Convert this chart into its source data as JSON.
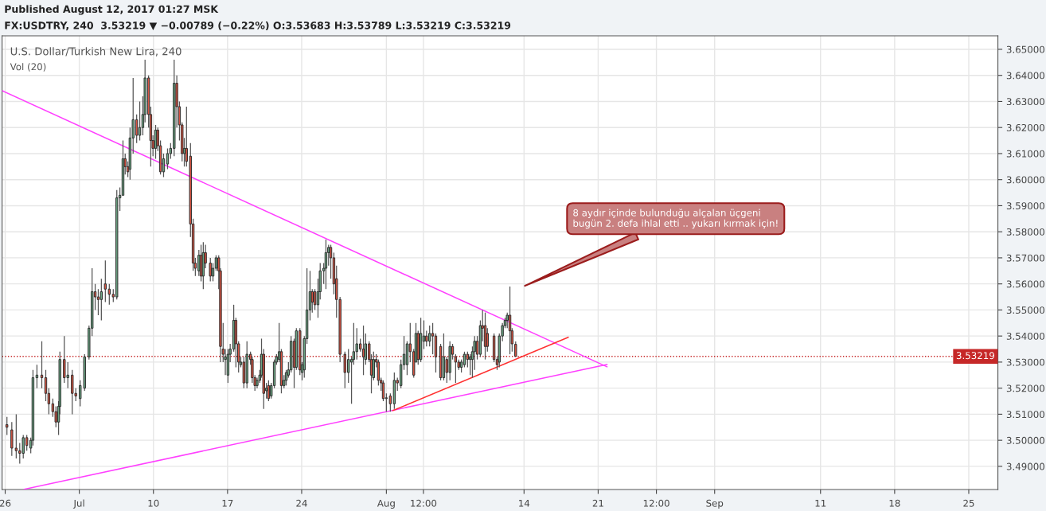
{
  "chart_data": {
    "type": "candlestick",
    "title": "Published August 12, 2017 01:27 MSK",
    "subtitle": "FX:USDTRY, 240  3.53219 ▼ −0.00789 (−0.22%) O:3.53683 H:3.53789 L:3.53219 C:3.53219",
    "annotations": [
      "U.S. Dollar/Turkish New Lira, 240",
      "Vol (20)",
      "8 aydır içinde bulunduğu alçalan üçgeni\nbugün 2. defa ihlal etti .. yukarı kırmak için!"
    ],
    "x": [
      "2017-06-26T04:00",
      "2017-06-26T15:00",
      "2017-06-27T01:00",
      "2017-06-27T09:00",
      "2017-06-27T17:00",
      "2017-06-28T01:00",
      "2017-06-28T10:00",
      "2017-06-28T15:00",
      "2017-06-29T00:00",
      "2017-06-29T11:00",
      "2017-06-29T20:00",
      "2017-06-30T03:00",
      "2017-06-30T12:00",
      "2017-06-30T19:00",
      "2017-07-01T01:00",
      "2017-07-01T04:00",
      "2017-07-01T14:00",
      "2017-07-01T22:00",
      "2017-07-02T08:00",
      "2017-07-02T16:00",
      "2017-07-03T02:00",
      "2017-07-03T12:00",
      "2017-07-03T22:00",
      "2017-07-04T05:00",
      "2017-07-04T12:00",
      "2017-07-04T19:00",
      "2017-07-05T02:00",
      "2017-07-05T11:00",
      "2017-07-05T20:00",
      "2017-07-06T05:00",
      "2017-07-06T13:00",
      "2017-07-06T20:00",
      "2017-07-07T03:00",
      "2017-07-07T08:00",
      "2017-07-07T14:00",
      "2017-07-07T19:00",
      "2017-07-08T02:00",
      "2017-07-08T10:00",
      "2017-07-08T17:00",
      "2017-07-09T00:00",
      "2017-07-09T05:00",
      "2017-07-09T13:00",
      "2017-07-09T18:00",
      "2017-07-09T23:00",
      "2017-07-10T05:00",
      "2017-07-10T10:00",
      "2017-07-10T16:00",
      "2017-07-10T23:00",
      "2017-07-11T08:00",
      "2017-07-11T15:00",
      "2017-07-11T23:00",
      "2017-07-12T05:00",
      "2017-07-12T11:00",
      "2017-07-12T17:00",
      "2017-07-12T22:00",
      "2017-07-13T03:00",
      "2017-07-13T12:00",
      "2017-07-13T18:00",
      "2017-07-13T23:00",
      "2017-07-14T07:00",
      "2017-07-14T12:00",
      "2017-07-14T17:00",
      "2017-07-14T22:00",
      "2017-07-15T09:00",
      "2017-07-15T15:00",
      "2017-07-15T22:00",
      "2017-07-16T04:00",
      "2017-07-16T08:00",
      "2017-07-16T14:00",
      "2017-07-16T19:00",
      "2017-07-17T01:00",
      "2017-07-17T06:00",
      "2017-07-17T14:00",
      "2017-07-17T19:00",
      "2017-07-18T01:00",
      "2017-07-18T06:00",
      "2017-07-18T13:00",
      "2017-07-18T20:00",
      "2017-07-19T04:00",
      "2017-07-19T08:00",
      "2017-07-19T14:00",
      "2017-07-19T19:00",
      "2017-07-20T01:00",
      "2017-07-20T05:00",
      "2017-07-20T10:00",
      "2017-07-20T16:00",
      "2017-07-20T21:00",
      "2017-07-21T03:00",
      "2017-07-21T10:00",
      "2017-07-21T15:00",
      "2017-07-21T21:00",
      "2017-07-22T02:00",
      "2017-07-22T08:00",
      "2017-07-22T13:00",
      "2017-07-22T18:00",
      "2017-07-23T00:00",
      "2017-07-23T07:00",
      "2017-07-23T12:00",
      "2017-07-23T20:00",
      "2017-07-24T01:00",
      "2017-07-24T06:00",
      "2017-07-24T12:00",
      "2017-07-24T19:00",
      "2017-07-25T00:00",
      "2017-07-25T06:00",
      "2017-07-25T13:00",
      "2017-07-25T18:00",
      "2017-07-26T02:00",
      "2017-07-26T07:00",
      "2017-07-26T13:00",
      "2017-07-26T18:00",
      "2017-07-27T01:00",
      "2017-07-27T07:00",
      "2017-07-27T15:00",
      "2017-07-28T02:00",
      "2017-07-28T10:00",
      "2017-07-28T17:00",
      "2017-07-28T22:00",
      "2017-07-29T05:00",
      "2017-07-29T13:00",
      "2017-07-29T20:00",
      "2017-07-30T01:00",
      "2017-07-30T09:00",
      "2017-07-30T14:00",
      "2017-07-30T19:00",
      "2017-07-31T01:00",
      "2017-07-31T06:00",
      "2017-07-31T12:00",
      "2017-07-31T17:00",
      "2017-08-01T00:00",
      "2017-08-01T09:00",
      "2017-08-01T18:00",
      "2017-08-02T01:00",
      "2017-08-02T09:00",
      "2017-08-02T16:00",
      "2017-08-02T23:00",
      "2017-08-03T06:00",
      "2017-08-03T14:00",
      "2017-08-03T19:00",
      "2017-08-04T00:00",
      "2017-08-04T06:00",
      "2017-08-04T13:00",
      "2017-08-04T19:00",
      "2017-08-05T02:00",
      "2017-08-05T09:00",
      "2017-08-05T16:00",
      "2017-08-06T03:00",
      "2017-08-06T10:00",
      "2017-08-06T17:00",
      "2017-08-07T00:00",
      "2017-08-07T06:00",
      "2017-08-07T13:00",
      "2017-08-07T20:00",
      "2017-08-08T02:00",
      "2017-08-08T09:00",
      "2017-08-08T16:00",
      "2017-08-08T22:00",
      "2017-08-09T03:00",
      "2017-08-09T08:00",
      "2017-08-09T14:00",
      "2017-08-09T21:00",
      "2017-08-10T02:00",
      "2017-08-10T08:00",
      "2017-08-10T13:00",
      "2017-08-11T04:00",
      "2017-08-11T11:00",
      "2017-08-11T16:00",
      "2017-08-11T23:00",
      "2017-08-12T05:00",
      "2017-08-12T10:00",
      "2017-08-12T16:00",
      "2017-08-12T21:00",
      "2017-08-13T05:00"
    ],
    "ohlc": [
      [
        3.506,
        3.509,
        3.502,
        3.505
      ],
      [
        3.504,
        3.507,
        3.494,
        3.497
      ],
      [
        3.497,
        3.51,
        3.493,
        3.496
      ],
      [
        3.496,
        3.499,
        3.491,
        3.495
      ],
      [
        3.495,
        3.502,
        3.493,
        3.501
      ],
      [
        3.501,
        3.502,
        3.496,
        3.498
      ],
      [
        3.497,
        3.501,
        3.495,
        3.5
      ],
      [
        3.5,
        3.527,
        3.498,
        3.524
      ],
      [
        3.524,
        3.529,
        3.52,
        3.525
      ],
      [
        3.525,
        3.538,
        3.52,
        3.524
      ],
      [
        3.524,
        3.527,
        3.515,
        3.518
      ],
      [
        3.518,
        3.52,
        3.51,
        3.514
      ],
      [
        3.514,
        3.516,
        3.509,
        3.511
      ],
      [
        3.511,
        3.513,
        3.505,
        3.507
      ],
      [
        3.507,
        3.515,
        3.502,
        3.513
      ],
      [
        3.513,
        3.534,
        3.51,
        3.531
      ],
      [
        3.531,
        3.54,
        3.522,
        3.524
      ],
      [
        3.524,
        3.53,
        3.52,
        3.525
      ],
      [
        3.525,
        3.527,
        3.51,
        3.518
      ],
      [
        3.518,
        3.52,
        3.515,
        3.517
      ],
      [
        3.516,
        3.523,
        3.513,
        3.521
      ],
      [
        3.52,
        3.533,
        3.519,
        3.532
      ],
      [
        3.532,
        3.544,
        3.531,
        3.543
      ],
      [
        3.543,
        3.566,
        3.54,
        3.557
      ],
      [
        3.557,
        3.56,
        3.55,
        3.555
      ],
      [
        3.555,
        3.558,
        3.548,
        3.554
      ],
      [
        3.554,
        3.562,
        3.546,
        3.557
      ],
      [
        3.56,
        3.569,
        3.553,
        3.558
      ],
      [
        3.558,
        3.56,
        3.552,
        3.556
      ],
      [
        3.556,
        3.558,
        3.553,
        3.555
      ],
      [
        3.555,
        3.596,
        3.554,
        3.593
      ],
      [
        3.593,
        3.597,
        3.588,
        3.594
      ],
      [
        3.594,
        3.615,
        3.594,
        3.608
      ],
      [
        3.608,
        3.61,
        3.602,
        3.605
      ],
      [
        3.605,
        3.607,
        3.601,
        3.603
      ],
      [
        3.604,
        3.62,
        3.6,
        3.616
      ],
      [
        3.616,
        3.639,
        3.61,
        3.623
      ],
      [
        3.623,
        3.625,
        3.614,
        3.617
      ],
      [
        3.617,
        3.63,
        3.615,
        3.62
      ],
      [
        3.62,
        3.632,
        3.617,
        3.625
      ],
      [
        3.625,
        3.646,
        3.622,
        3.639
      ],
      [
        3.639,
        3.64,
        3.62,
        3.625
      ],
      [
        3.625,
        3.628,
        3.605,
        3.615
      ],
      [
        3.615,
        3.617,
        3.609,
        3.612
      ],
      [
        3.612,
        3.621,
        3.608,
        3.619
      ],
      [
        3.619,
        3.62,
        3.611,
        3.613
      ],
      [
        3.613,
        3.615,
        3.602,
        3.603
      ],
      [
        3.603,
        3.61,
        3.601,
        3.608
      ],
      [
        3.606,
        3.612,
        3.604,
        3.61
      ],
      [
        3.61,
        3.614,
        3.608,
        3.612
      ],
      [
        3.612,
        3.646,
        3.609,
        3.637
      ],
      [
        3.637,
        3.64,
        3.62,
        3.628
      ],
      [
        3.628,
        3.63,
        3.615,
        3.621
      ],
      [
        3.621,
        3.622,
        3.607,
        3.61
      ],
      [
        3.61,
        3.616,
        3.605,
        3.612
      ],
      [
        3.612,
        3.628,
        3.605,
        3.607
      ],
      [
        3.609,
        3.614,
        3.578,
        3.583
      ],
      [
        3.583,
        3.585,
        3.565,
        3.568
      ],
      [
        3.568,
        3.57,
        3.563,
        3.566
      ],
      [
        3.565,
        3.573,
        3.563,
        3.571
      ],
      [
        3.571,
        3.575,
        3.561,
        3.563
      ],
      [
        3.563,
        3.576,
        3.558,
        3.572
      ],
      [
        3.572,
        3.575,
        3.566,
        3.568
      ],
      [
        3.568,
        3.57,
        3.561,
        3.563
      ],
      [
        3.563,
        3.568,
        3.561,
        3.566
      ],
      [
        3.566,
        3.571,
        3.565,
        3.57
      ],
      [
        3.57,
        3.571,
        3.558,
        3.565
      ],
      [
        3.565,
        3.566,
        3.53,
        3.536
      ],
      [
        3.535,
        3.545,
        3.53,
        3.533
      ],
      [
        3.531,
        3.535,
        3.525,
        3.532
      ],
      [
        3.525,
        3.535,
        3.522,
        3.533
      ],
      [
        3.533,
        3.537,
        3.53,
        3.535
      ],
      [
        3.535,
        3.552,
        3.534,
        3.546
      ],
      [
        3.546,
        3.547,
        3.528,
        3.537
      ],
      [
        3.537,
        3.538,
        3.526,
        3.53
      ],
      [
        3.529,
        3.532,
        3.528,
        3.53
      ],
      [
        3.53,
        3.532,
        3.52,
        3.522
      ],
      [
        3.522,
        3.538,
        3.52,
        3.533
      ],
      [
        3.533,
        3.534,
        3.529,
        3.531
      ],
      [
        3.531,
        3.532,
        3.522,
        3.524
      ],
      [
        3.524,
        3.525,
        3.519,
        3.521
      ],
      [
        3.521,
        3.524,
        3.52,
        3.523
      ],
      [
        3.523,
        3.527,
        3.522,
        3.525
      ],
      [
        3.525,
        3.539,
        3.524,
        3.533
      ],
      [
        3.533,
        3.535,
        3.512,
        3.518
      ],
      [
        3.519,
        3.522,
        3.516,
        3.52
      ],
      [
        3.521,
        3.523,
        3.515,
        3.516
      ],
      [
        3.517,
        3.522,
        3.516,
        3.521
      ],
      [
        3.521,
        3.531,
        3.52,
        3.53
      ],
      [
        3.53,
        3.533,
        3.529,
        3.532
      ],
      [
        3.531,
        3.545,
        3.53,
        3.534
      ],
      [
        3.534,
        3.535,
        3.518,
        3.521
      ],
      [
        3.521,
        3.525,
        3.52,
        3.523
      ],
      [
        3.523,
        3.527,
        3.521,
        3.526
      ],
      [
        3.525,
        3.53,
        3.524,
        3.527
      ],
      [
        3.527,
        3.54,
        3.526,
        3.538
      ],
      [
        3.538,
        3.539,
        3.52,
        3.528
      ],
      [
        3.528,
        3.543,
        3.527,
        3.542
      ],
      [
        3.542,
        3.543,
        3.525,
        3.527
      ],
      [
        3.526,
        3.53,
        3.523,
        3.529
      ],
      [
        3.527,
        3.54,
        3.524,
        3.539
      ],
      [
        3.539,
        3.566,
        3.537,
        3.55
      ],
      [
        3.55,
        3.565,
        3.546,
        3.557
      ],
      [
        3.557,
        3.558,
        3.549,
        3.553
      ],
      [
        3.557,
        3.558,
        3.55,
        3.552
      ],
      [
        3.552,
        3.562,
        3.547,
        3.557
      ],
      [
        3.557,
        3.568,
        3.554,
        3.565
      ],
      [
        3.565,
        3.568,
        3.56,
        3.566
      ],
      [
        3.566,
        3.577,
        3.558,
        3.572
      ],
      [
        3.572,
        3.575,
        3.567,
        3.574
      ],
      [
        3.574,
        3.575,
        3.562,
        3.57
      ],
      [
        3.57,
        3.572,
        3.556,
        3.56
      ],
      [
        3.562,
        3.567,
        3.547,
        3.554
      ],
      [
        3.554,
        3.555,
        3.53,
        3.533
      ],
      [
        3.533,
        3.534,
        3.52,
        3.526
      ],
      [
        3.526,
        3.535,
        3.522,
        3.531
      ],
      [
        3.53,
        3.532,
        3.514,
        3.531
      ],
      [
        3.531,
        3.545,
        3.529,
        3.534
      ],
      [
        3.534,
        3.543,
        3.531,
        3.537
      ],
      [
        3.537,
        3.539,
        3.534,
        3.535
      ],
      [
        3.535,
        3.544,
        3.525,
        3.532
      ],
      [
        3.531,
        3.541,
        3.529,
        3.537
      ],
      [
        3.537,
        3.538,
        3.53,
        3.531
      ],
      [
        3.531,
        3.533,
        3.518,
        3.525
      ],
      [
        3.524,
        3.534,
        3.523,
        3.531
      ],
      [
        3.531,
        3.533,
        3.528,
        3.53
      ],
      [
        3.53,
        3.531,
        3.521,
        3.523
      ],
      [
        3.523,
        3.524,
        3.519,
        3.522
      ],
      [
        3.522,
        3.523,
        3.515,
        3.516
      ],
      [
        3.516,
        3.518,
        3.511,
        3.516
      ],
      [
        3.517,
        3.518,
        3.511,
        3.514
      ],
      [
        3.514,
        3.526,
        3.512,
        3.523
      ],
      [
        3.523,
        3.524,
        3.519,
        3.522
      ],
      [
        3.521,
        3.531,
        3.52,
        3.529
      ],
      [
        3.529,
        3.54,
        3.527,
        3.533
      ],
      [
        3.529,
        3.538,
        3.525,
        3.537
      ],
      [
        3.537,
        3.545,
        3.53,
        3.534
      ],
      [
        3.534,
        3.535,
        3.524,
        3.525
      ],
      [
        3.53,
        3.545,
        3.53,
        3.541
      ],
      [
        3.541,
        3.542,
        3.529,
        3.531
      ],
      [
        3.531,
        3.547,
        3.53,
        3.541
      ],
      [
        3.538,
        3.546,
        3.535,
        3.54
      ],
      [
        3.54,
        3.542,
        3.536,
        3.538
      ],
      [
        3.538,
        3.544,
        3.536,
        3.541
      ],
      [
        3.541,
        3.545,
        3.533,
        3.54
      ],
      [
        3.54,
        3.541,
        3.526,
        3.532
      ],
      [
        3.536,
        3.537,
        3.523,
        3.524
      ],
      [
        3.524,
        3.541,
        3.523,
        3.532
      ],
      [
        3.531,
        3.532,
        3.522,
        3.526
      ],
      [
        3.526,
        3.538,
        3.523,
        3.536
      ],
      [
        3.536,
        3.537,
        3.531,
        3.533
      ],
      [
        3.532,
        3.533,
        3.522,
        3.53
      ],
      [
        3.53,
        3.531,
        3.527,
        3.528
      ],
      [
        3.528,
        3.531,
        3.526,
        3.53
      ],
      [
        3.529,
        3.534,
        3.528,
        3.533
      ],
      [
        3.533,
        3.534,
        3.528,
        3.531
      ],
      [
        3.531,
        3.533,
        3.525,
        3.532
      ],
      [
        3.531,
        3.536,
        3.524,
        3.534
      ],
      [
        3.534,
        3.54,
        3.527,
        3.538
      ],
      [
        3.538,
        3.54,
        3.531,
        3.533
      ],
      [
        3.533,
        3.546,
        3.532,
        3.544
      ],
      [
        3.544,
        3.55,
        3.538,
        3.543
      ],
      [
        3.544,
        3.549,
        3.531,
        3.536
      ],
      [
        3.541,
        3.543,
        3.534,
        3.536
      ],
      [
        3.54,
        3.541,
        3.53,
        3.531
      ],
      [
        3.531,
        3.532,
        3.527,
        3.529
      ],
      [
        3.53,
        3.541,
        3.528,
        3.54
      ],
      [
        3.54,
        3.545,
        3.538,
        3.544
      ],
      [
        3.544,
        3.547,
        3.543,
        3.546
      ],
      [
        3.546,
        3.549,
        3.543,
        3.548
      ],
      [
        3.548,
        3.559,
        3.533,
        3.542
      ],
      [
        3.542,
        3.543,
        3.534,
        3.537
      ],
      [
        3.53683,
        3.53789,
        3.53219,
        3.53219
      ]
    ],
    "series": [
      {
        "type": "line",
        "color": "#ff40ff",
        "x": [
          "2017-06-25T17:00",
          "2017-08-21T20:00"
        ],
        "values": [
          3.6341,
          3.5282
        ]
      },
      {
        "type": "line",
        "color": "#ff40ff",
        "x": [
          "2017-06-27T19:00",
          "2017-08-21T20:00"
        ],
        "values": [
          3.4812,
          3.5291
        ]
      },
      {
        "type": "line",
        "color": "#ff3030",
        "x": [
          "2017-08-01T15:00",
          "2017-08-18T04:00"
        ],
        "values": [
          3.5114,
          3.5395
        ]
      }
    ],
    "ref_lines": [
      {
        "axis": "y",
        "value": 3.53219,
        "label": "3.53219",
        "color": "#c62828",
        "line_style": "dotted"
      }
    ],
    "xlim": [
      "2017-06-25T17:00",
      "2017-09-27T18:00"
    ],
    "xticks": [
      {
        "value": "2017-06-26",
        "label": "26"
      },
      {
        "value": "2017-07-03",
        "label": "Jul"
      },
      {
        "value": "2017-07-10",
        "label": "10"
      },
      {
        "value": "2017-07-17",
        "label": "17"
      },
      {
        "value": "2017-07-24",
        "label": "24"
      },
      {
        "value": "2017-08-01",
        "label": "Aug"
      },
      {
        "value": "2017-08-04T12:00",
        "label": "12:00"
      },
      {
        "value": "2017-08-14",
        "label": "14"
      },
      {
        "value": "2017-08-21",
        "label": "21"
      },
      {
        "value": "2017-08-26T12:00",
        "label": "12:00"
      },
      {
        "value": "2017-09-01",
        "label": "Sep"
      },
      {
        "value": "2017-09-11",
        "label": "11"
      },
      {
        "value": "2017-09-18",
        "label": "18"
      },
      {
        "value": "2017-09-25",
        "label": "25"
      }
    ],
    "ylim": [
      3.4811,
      3.6552
    ],
    "yticks": [
      {
        "value": 3.49,
        "label": "3.49000"
      },
      {
        "value": 3.5,
        "label": "3.50000"
      },
      {
        "value": 3.51,
        "label": "3.51000"
      },
      {
        "value": 3.52,
        "label": "3.52000"
      },
      {
        "value": 3.53,
        "label": "3.53000"
      },
      {
        "value": 3.54,
        "label": "3.54000"
      },
      {
        "value": 3.55,
        "label": "3.55000"
      },
      {
        "value": 3.56,
        "label": "3.56000"
      },
      {
        "value": 3.57,
        "label": "3.57000"
      },
      {
        "value": 3.58,
        "label": "3.58000"
      },
      {
        "value": 3.59,
        "label": "3.59000"
      },
      {
        "value": 3.6,
        "label": "3.60000"
      },
      {
        "value": 3.61,
        "label": "3.61000"
      },
      {
        "value": 3.62,
        "label": "3.62000"
      },
      {
        "value": 3.63,
        "label": "3.63000"
      },
      {
        "value": 3.64,
        "label": "3.64000"
      },
      {
        "value": 3.65,
        "label": "3.65000"
      }
    ],
    "grid": true
  }
}
